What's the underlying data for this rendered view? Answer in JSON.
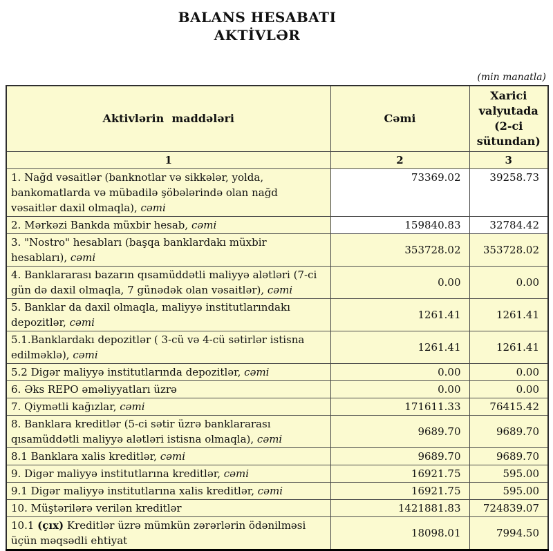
{
  "page": {
    "title_line1": "BALANS HESABATI",
    "title_line2": "AKTİVLƏR",
    "unit_note": "(min manatla)"
  },
  "colors": {
    "cell_bg": "#FBFAD0",
    "white_bg": "#FFFFFF",
    "border": "#4a4a4a"
  },
  "table": {
    "header": {
      "items_col": "Aktivlərin  maddələri",
      "total_col": "Cəmi",
      "foreign_col": "Xarici valyutada (2-ci sütundan)"
    },
    "column_numbers": [
      "1",
      "2",
      "3"
    ],
    "rows": [
      {
        "label_runs": [
          {
            "t": "1. Nağd vəsaitlər (banknotlar və sikkələr, yolda, bankomatlarda və mübadilə şöbələrində olan nağd vəsaitlər daxil olmaqla), ",
            "s": "n"
          },
          {
            "t": "cəmi",
            "s": "i"
          }
        ],
        "total": "73369.02",
        "foreign": "39258.73",
        "white_values": true,
        "top_values": true
      },
      {
        "label_runs": [
          {
            "t": "2. Mərkəzi Bankda müxbir hesab, ",
            "s": "n"
          },
          {
            "t": "cəmi",
            "s": "i"
          }
        ],
        "total": "159840.83",
        "foreign": "32784.42",
        "white_values": true,
        "top_values": false
      },
      {
        "label_runs": [
          {
            "t": "3. \"Nostro\" hesabları (başqa banklardakı müxbir hesabları), ",
            "s": "n"
          },
          {
            "t": "cəmi",
            "s": "i"
          }
        ],
        "total": "353728.02",
        "foreign": "353728.02",
        "white_values": false,
        "top_values": false
      },
      {
        "label_runs": [
          {
            "t": "4. Banklararası bazarın qısamüddətli maliyyə alətləri (7-ci gün də daxil olmaqla, 7 günədək olan vəsaitlər), ",
            "s": "n"
          },
          {
            "t": "cəmi",
            "s": "i"
          }
        ],
        "total": "0.00",
        "foreign": "0.00",
        "white_values": false,
        "top_values": false
      },
      {
        "label_runs": [
          {
            "t": "5. Banklar da daxil olmaqla, maliyyə institutlarındakı depozitlər, ",
            "s": "n"
          },
          {
            "t": "cəmi",
            "s": "i"
          }
        ],
        "total": "1261.41",
        "foreign": "1261.41",
        "white_values": false,
        "top_values": false
      },
      {
        "label_runs": [
          {
            "t": "5.1.Banklardakı depozitlər ( 3-cü və 4-cü sətirlər istisna edilməklə), ",
            "s": "n"
          },
          {
            "t": "cəmi",
            "s": "i"
          }
        ],
        "total": "1261.41",
        "foreign": "1261.41",
        "white_values": false,
        "top_values": false
      },
      {
        "label_runs": [
          {
            "t": "5.2 Digər maliyyə institutlarında depozitlər, ",
            "s": "n"
          },
          {
            "t": "cəmi",
            "s": "i"
          }
        ],
        "total": "0.00",
        "foreign": "0.00",
        "white_values": false,
        "top_values": false
      },
      {
        "label_runs": [
          {
            "t": "6. Əks REPO əməliyyatları üzrə",
            "s": "n"
          }
        ],
        "total": "0.00",
        "foreign": "0.00",
        "white_values": false,
        "top_values": false
      },
      {
        "label_runs": [
          {
            "t": "7. Qiymətli kağızlar, ",
            "s": "n"
          },
          {
            "t": "cəmi",
            "s": "i"
          }
        ],
        "total": "171611.33",
        "foreign": "76415.42",
        "white_values": false,
        "top_values": false
      },
      {
        "label_runs": [
          {
            "t": "8. Banklara kreditlər (5-ci sətir üzrə banklararası qısamüddətli maliyyə alətləri istisna olmaqla), ",
            "s": "n"
          },
          {
            "t": "cəmi",
            "s": "i"
          }
        ],
        "total": "9689.70",
        "foreign": "9689.70",
        "white_values": false,
        "top_values": false
      },
      {
        "label_runs": [
          {
            "t": "8.1 Banklara xalis kreditlər, ",
            "s": "n"
          },
          {
            "t": "cəmi",
            "s": "i"
          }
        ],
        "total": "9689.70",
        "foreign": "9689.70",
        "white_values": false,
        "top_values": false
      },
      {
        "label_runs": [
          {
            "t": "9. Digər maliyyə institutlarına kreditlər, ",
            "s": "n"
          },
          {
            "t": "cəmi",
            "s": "i"
          }
        ],
        "total": "16921.75",
        "foreign": "595.00",
        "white_values": false,
        "top_values": false
      },
      {
        "label_runs": [
          {
            "t": "9.1 Digər maliyyə institutlarına xalis kreditlər, ",
            "s": "n"
          },
          {
            "t": "cəmi",
            "s": "i"
          }
        ],
        "total": "16921.75",
        "foreign": "595.00",
        "white_values": false,
        "top_values": false
      },
      {
        "label_runs": [
          {
            "t": "10. Müştərilərə verilən kreditlər",
            "s": "n"
          }
        ],
        "total": "1421881.83",
        "foreign": "724839.07",
        "white_values": false,
        "top_values": false
      },
      {
        "label_runs": [
          {
            "t": "10.1 ",
            "s": "n"
          },
          {
            "t": "(çıx)",
            "s": "b"
          },
          {
            "t": " Kreditlər üzrə mümkün zərərlərin ödənilməsi üçün məqsədli ehtiyat",
            "s": "n"
          }
        ],
        "total": "18098.01",
        "foreign": "7994.50",
        "white_values": false,
        "top_values": false
      }
    ]
  }
}
